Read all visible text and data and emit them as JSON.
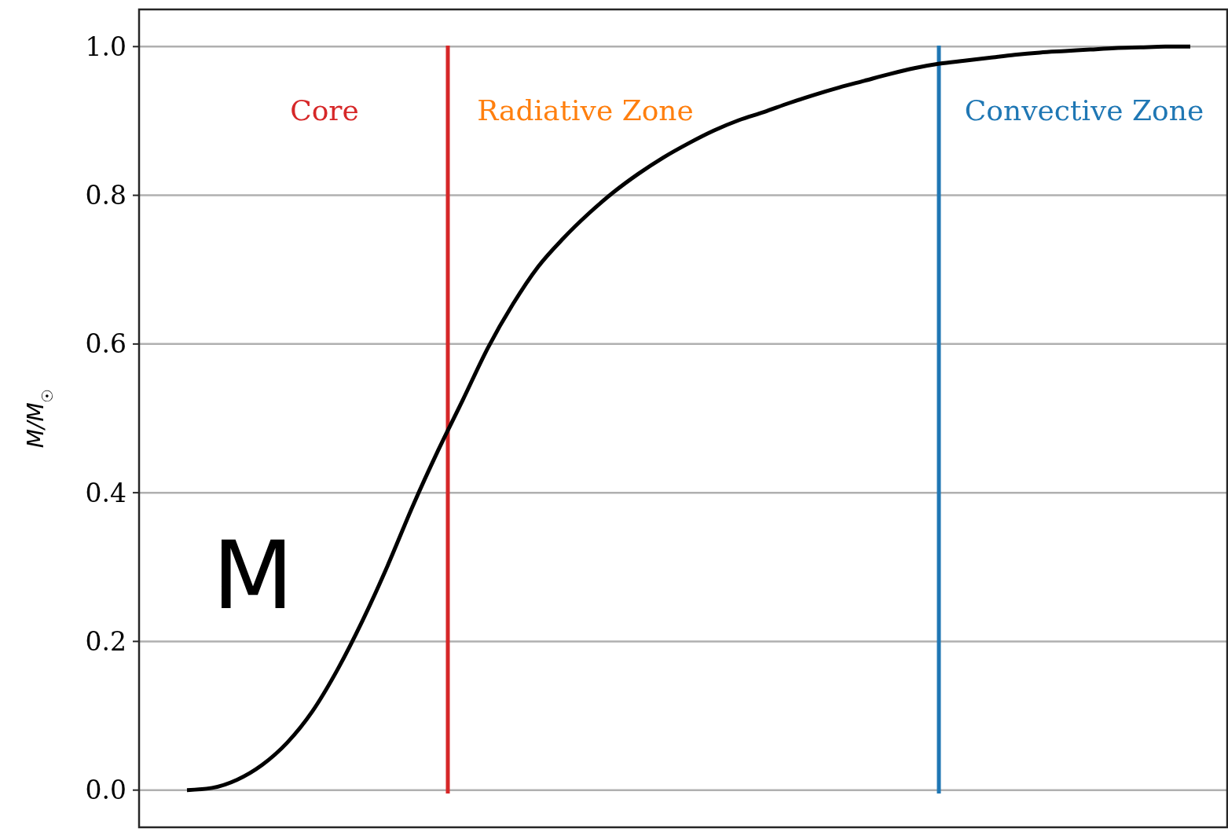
{
  "chart_data": {
    "type": "line",
    "ylabel": "M/M$_{☉}$",
    "categories": [
      null,
      null,
      null,
      null,
      null,
      null,
      null,
      null,
      null,
      null,
      null,
      null,
      null,
      null,
      null,
      null,
      null,
      null,
      null,
      null,
      null,
      null,
      null,
      null,
      null,
      null,
      null,
      null,
      null,
      null,
      null,
      null,
      null,
      null,
      null,
      null,
      null,
      null,
      null,
      null,
      null
    ],
    "series": [
      {
        "color": "#000000",
        "values": [
          0,
          0.003,
          0.014,
          0.034,
          0.064,
          0.106,
          0.162,
          0.228,
          0.302,
          0.382,
          0.456,
          0.525,
          0.595,
          0.654,
          0.704,
          0.742,
          0.775,
          0.804,
          0.829,
          0.851,
          0.87,
          0.887,
          0.901,
          0.912,
          0.924,
          0.935,
          0.945,
          0.954,
          0.963,
          0.971,
          0.977,
          0.981,
          0.985,
          0.989,
          0.992,
          0.994,
          0.996,
          0.998,
          0.999,
          1.0,
          1.0
        ]
      }
    ],
    "ylim": [
      -0.05,
      1.05
    ],
    "yticks": [
      {
        "value": 0,
        "label": "0.0"
      },
      {
        "value": 0.2,
        "label": "0.2"
      },
      {
        "value": 0.4,
        "label": "0.4"
      },
      {
        "value": 0.6,
        "label": "0.6"
      },
      {
        "value": 0.8,
        "label": "0.8"
      },
      {
        "value": 1,
        "label": "1.0"
      }
    ],
    "tick_labels": "y",
    "grid": "y",
    "line_style": "solid",
    "marker": "none",
    "annotations": [
      "Core",
      "Radiative Zone",
      "Convective Zone",
      "M"
    ]
  }
}
